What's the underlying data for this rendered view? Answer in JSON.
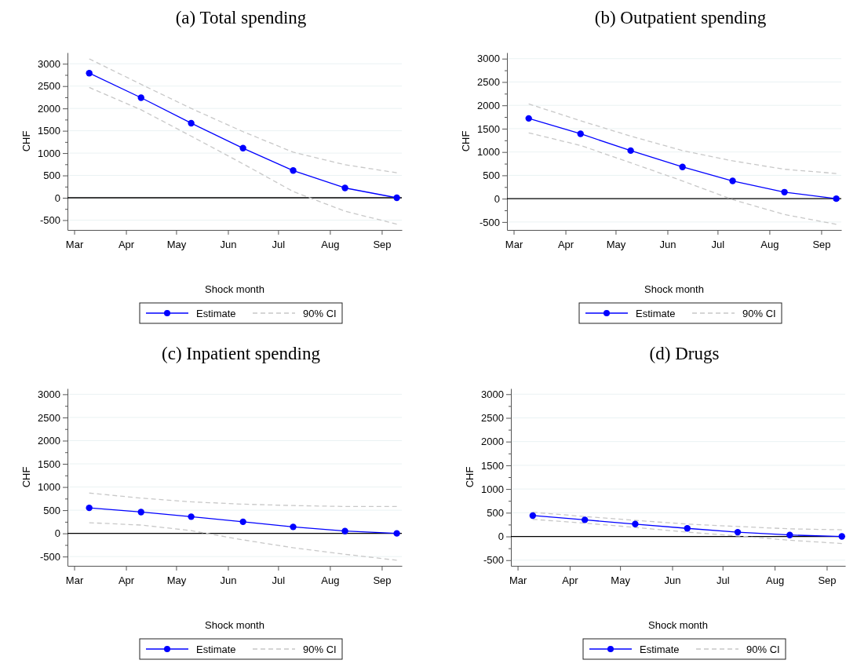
{
  "chart_data": [
    {
      "type": "line",
      "title": "(a) Total spending",
      "xlabel": "Shock month",
      "ylabel": "CHF",
      "xlim": [
        "--02-26",
        "--09-13"
      ],
      "ylim": [
        -720,
        3250
      ],
      "xticks": [
        {
          "value": "--03-01",
          "label": "Mar"
        },
        {
          "value": "--04-01",
          "label": "Apr"
        },
        {
          "value": "--05-01",
          "label": "May"
        },
        {
          "value": "--06-01",
          "label": "Jun"
        },
        {
          "value": "--07-01",
          "label": "Jul"
        },
        {
          "value": "--08-01",
          "label": "Aug"
        },
        {
          "value": "--09-01",
          "label": "Sep"
        }
      ],
      "yticks": [
        -500,
        {
          "value": -250,
          "label": null
        },
        0,
        {
          "value": 250,
          "label": null
        },
        500,
        {
          "value": 750,
          "label": null
        },
        1000,
        {
          "value": 1250,
          "label": null
        },
        1500,
        {
          "value": 1750,
          "label": null
        },
        2000,
        {
          "value": 2250,
          "label": null
        },
        2500,
        {
          "value": 2750,
          "label": null
        },
        3000
      ],
      "grid": "y",
      "legend": "bottom",
      "ref_lines": [
        {
          "axis": "y",
          "value": 0,
          "color": "#000000"
        }
      ],
      "x": [
        "--03-10",
        "--04-10",
        "--05-10",
        "--06-10",
        "--07-10",
        "--08-10",
        "--09-10"
      ],
      "series": [
        {
          "name": "Estimate",
          "color": "#0000ff",
          "marker": "circle",
          "line_style": "solid",
          "values": [
            2790,
            2240,
            1670,
            1110,
            610,
            220,
            0
          ]
        },
        {
          "name": "90% CI",
          "color": "#c8c8c8",
          "marker": "none",
          "line_style": "dashed",
          "values": [
            3110,
            2540,
            2000,
            1480,
            1020,
            740,
            560
          ]
        },
        {
          "color": "#c8c8c8",
          "marker": "none",
          "line_style": "dashed",
          "values": [
            2470,
            1970,
            1380,
            760,
            140,
            -300,
            -590
          ]
        }
      ]
    },
    {
      "type": "line",
      "title": "(b) Outpatient spending",
      "xlabel": "Shock month",
      "ylabel": "CHF",
      "xlim": [
        "--02-26",
        "--09-13"
      ],
      "ylim": [
        -670,
        3130
      ],
      "xticks": [
        {
          "value": "--03-01",
          "label": "Mar"
        },
        {
          "value": "--04-01",
          "label": "Apr"
        },
        {
          "value": "--05-01",
          "label": "May"
        },
        {
          "value": "--06-01",
          "label": "Jun"
        },
        {
          "value": "--07-01",
          "label": "Jul"
        },
        {
          "value": "--08-01",
          "label": "Aug"
        },
        {
          "value": "--09-01",
          "label": "Sep"
        }
      ],
      "yticks": [
        -500,
        {
          "value": -250,
          "label": null
        },
        0,
        {
          "value": 250,
          "label": null
        },
        500,
        {
          "value": 750,
          "label": null
        },
        1000,
        {
          "value": 1250,
          "label": null
        },
        1500,
        {
          "value": 1750,
          "label": null
        },
        2000,
        {
          "value": 2250,
          "label": null
        },
        2500,
        {
          "value": 2750,
          "label": null
        },
        3000
      ],
      "grid": "y",
      "legend": "bottom",
      "ref_lines": [
        {
          "axis": "y",
          "value": 0,
          "color": "#000000"
        }
      ],
      "x": [
        "--03-10",
        "--04-10",
        "--05-10",
        "--06-10",
        "--07-10",
        "--08-10",
        "--09-10"
      ],
      "series": [
        {
          "name": "Estimate",
          "color": "#0000ff",
          "marker": "circle",
          "line_style": "solid",
          "values": [
            1720,
            1390,
            1030,
            680,
            380,
            140,
            0
          ]
        },
        {
          "name": "90% CI",
          "color": "#c8c8c8",
          "marker": "none",
          "line_style": "dashed",
          "values": [
            2030,
            1670,
            1340,
            1030,
            810,
            630,
            540
          ]
        },
        {
          "color": "#c8c8c8",
          "marker": "none",
          "line_style": "dashed",
          "values": [
            1410,
            1140,
            770,
            380,
            -20,
            -340,
            -550
          ]
        }
      ]
    },
    {
      "type": "line",
      "title": "(c) Inpatient spending",
      "xlabel": "Shock month",
      "ylabel": "CHF",
      "xlim": [
        "--02-26",
        "--09-13"
      ],
      "ylim": [
        -700,
        3125
      ],
      "xticks": [
        {
          "value": "--03-01",
          "label": "Mar"
        },
        {
          "value": "--04-01",
          "label": "Apr"
        },
        {
          "value": "--05-01",
          "label": "May"
        },
        {
          "value": "--06-01",
          "label": "Jun"
        },
        {
          "value": "--07-01",
          "label": "Jul"
        },
        {
          "value": "--08-01",
          "label": "Aug"
        },
        {
          "value": "--09-01",
          "label": "Sep"
        }
      ],
      "yticks": [
        -500,
        {
          "value": -250,
          "label": null
        },
        0,
        {
          "value": 250,
          "label": null
        },
        500,
        {
          "value": 750,
          "label": null
        },
        1000,
        {
          "value": 1250,
          "label": null
        },
        1500,
        {
          "value": 1750,
          "label": null
        },
        2000,
        {
          "value": 2250,
          "label": null
        },
        2500,
        {
          "value": 2750,
          "label": null
        },
        3000
      ],
      "grid": "y",
      "legend": "bottom",
      "ref_lines": [
        {
          "axis": "y",
          "value": 0,
          "color": "#000000"
        }
      ],
      "x": [
        "--03-10",
        "--04-10",
        "--05-10",
        "--06-10",
        "--07-10",
        "--08-10",
        "--09-10"
      ],
      "series": [
        {
          "name": "Estimate",
          "color": "#0000ff",
          "marker": "circle",
          "line_style": "solid",
          "values": [
            550,
            460,
            360,
            250,
            140,
            50,
            0
          ]
        },
        {
          "name": "90% CI",
          "color": "#c8c8c8",
          "marker": "none",
          "line_style": "dashed",
          "values": [
            870,
            760,
            680,
            630,
            600,
            580,
            580
          ]
        },
        {
          "color": "#c8c8c8",
          "marker": "none",
          "line_style": "dashed",
          "values": [
            230,
            180,
            60,
            -140,
            -310,
            -450,
            -580
          ]
        }
      ]
    },
    {
      "type": "line",
      "title": "(d) Drugs",
      "xlabel": "Shock month",
      "ylabel": "CHF",
      "xlim": [
        "--02-26",
        "--09-12"
      ],
      "ylim": [
        -620,
        3120
      ],
      "xticks": [
        {
          "value": "--03-01",
          "label": "Mar"
        },
        {
          "value": "--04-01",
          "label": "Apr"
        },
        {
          "value": "--05-01",
          "label": "May"
        },
        {
          "value": "--06-01",
          "label": "Jun"
        },
        {
          "value": "--07-01",
          "label": "Jul"
        },
        {
          "value": "--08-01",
          "label": "Aug"
        },
        {
          "value": "--09-01",
          "label": "Sep"
        }
      ],
      "yticks": [
        -500,
        {
          "value": -250,
          "label": null
        },
        0,
        {
          "value": 250,
          "label": null
        },
        500,
        {
          "value": 750,
          "label": null
        },
        1000,
        {
          "value": 1250,
          "label": null
        },
        1500,
        {
          "value": 1750,
          "label": null
        },
        2000,
        {
          "value": 2250,
          "label": null
        },
        2500,
        {
          "value": 2750,
          "label": null
        },
        3000
      ],
      "grid": "y",
      "legend": "bottom",
      "ref_lines": [
        {
          "axis": "y",
          "value": 0,
          "color": "#000000"
        }
      ],
      "x": [
        "--03-10",
        "--04-10",
        "--05-10",
        "--06-10",
        "--07-10",
        "--08-10",
        "--09-10"
      ],
      "series": [
        {
          "name": "Estimate",
          "color": "#0000ff",
          "marker": "circle",
          "line_style": "solid",
          "values": [
            440,
            350,
            260,
            170,
            90,
            30,
            0
          ]
        },
        {
          "name": "90% CI",
          "color": "#c8c8c8",
          "marker": "none",
          "line_style": "dashed",
          "values": [
            510,
            420,
            340,
            260,
            210,
            160,
            140
          ]
        },
        {
          "color": "#c8c8c8",
          "marker": "none",
          "line_style": "dashed",
          "values": [
            360,
            280,
            190,
            90,
            10,
            -80,
            -150
          ]
        }
      ]
    }
  ]
}
